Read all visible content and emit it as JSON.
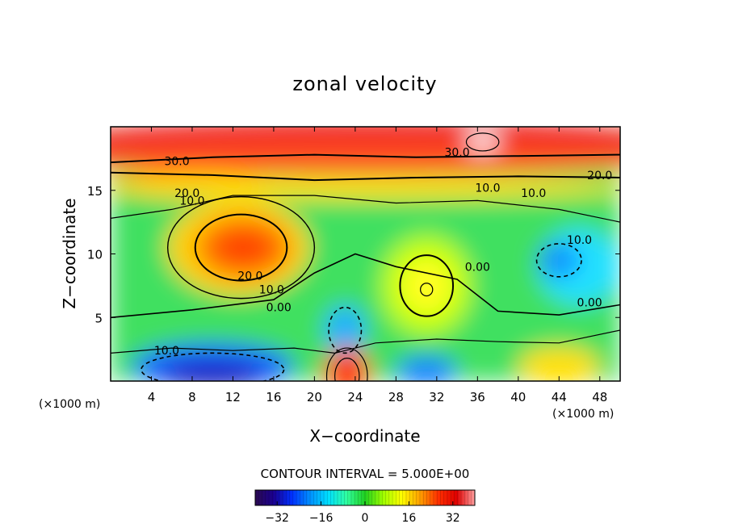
{
  "chart_data": {
    "type": "heatmap",
    "title": "zonal velocity",
    "xlabel": "X−coordinate",
    "ylabel": "Z−coordinate",
    "x_units": "(×1000 m)",
    "y_units": "(×1000 m)",
    "xlim": [
      0,
      50
    ],
    "ylim": [
      0,
      20
    ],
    "x_ticks": [
      4,
      8,
      12,
      16,
      20,
      24,
      28,
      32,
      36,
      40,
      44,
      48
    ],
    "x_tick_labels": [
      "4",
      "8",
      "12",
      "16",
      "20",
      "24",
      "28",
      "32",
      "36",
      "40",
      "44",
      "48"
    ],
    "y_ticks": [
      5,
      10,
      15
    ],
    "y_tick_labels": [
      "5",
      "10",
      "15"
    ],
    "contour_interval_text": "CONTOUR INTERVAL = 5.000E+00",
    "contour_interval": 5.0,
    "contour_labels": [
      {
        "text": "30.0",
        "x": 6.5,
        "y": 17.3
      },
      {
        "text": "30.0",
        "x": 34.0,
        "y": 18.0
      },
      {
        "text": "20.0",
        "x": 48.0,
        "y": 16.2
      },
      {
        "text": "20.0",
        "x": 7.5,
        "y": 14.8
      },
      {
        "text": "10.0",
        "x": 8.0,
        "y": 14.2
      },
      {
        "text": "10.0",
        "x": 37.0,
        "y": 15.2
      },
      {
        "text": "10.0",
        "x": 41.5,
        "y": 14.8
      },
      {
        "text": "10.0",
        "x": 46.0,
        "y": 11.1
      },
      {
        "text": "20.0",
        "x": 13.7,
        "y": 8.3
      },
      {
        "text": "10.0",
        "x": 15.8,
        "y": 7.2
      },
      {
        "text": "0.00",
        "x": 16.5,
        "y": 5.8
      },
      {
        "text": "0.00",
        "x": 36.0,
        "y": 9.0
      },
      {
        "text": "0.00",
        "x": 47.0,
        "y": 6.2
      },
      {
        "text": "10.0",
        "x": 5.5,
        "y": 2.4
      }
    ],
    "colorbar": {
      "range": [
        -40,
        40
      ],
      "ticks": [
        -32,
        -16,
        0,
        16,
        32
      ],
      "tick_labels": [
        "−32",
        "−16",
        "0",
        "16",
        "32"
      ],
      "colors": [
        "#2a0a50",
        "#1a0090",
        "#0030ff",
        "#0090ff",
        "#00e0ff",
        "#30ffa0",
        "#20d020",
        "#a0ff00",
        "#ffff00",
        "#ffa000",
        "#ff3000",
        "#e00000",
        "#ffa0a0"
      ]
    }
  }
}
